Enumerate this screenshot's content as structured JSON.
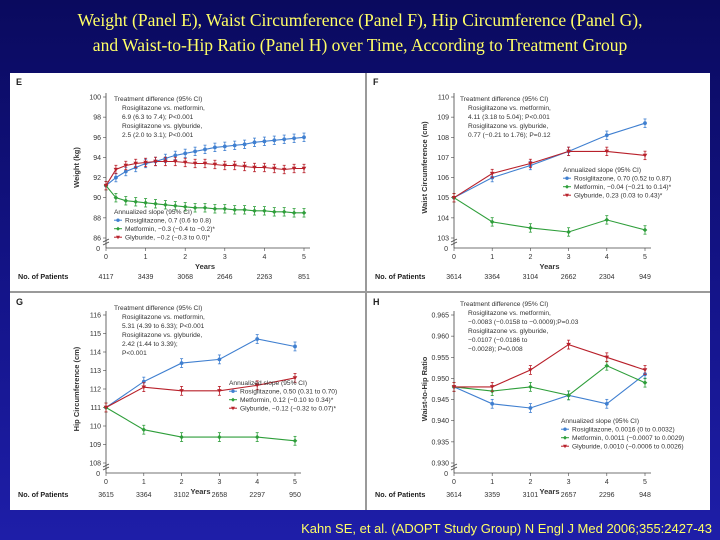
{
  "slide": {
    "title_line1": "Weight (Panel E), Waist Circumference (Panel F), Hip Circumference (Panel G),",
    "title_line2": "and Waist-to-Hip Ratio (Panel H) over Time, According to Treatment Group",
    "citation": "Kahn SE, et al. (ADOPT Study Group) N Engl J Med 2006;355:2427-43",
    "background": "#14148a",
    "title_color": "#ffff66"
  },
  "colors": {
    "rosiglitazone": "#3f7fd0",
    "metformin": "#2e9e3a",
    "glyburide": "#b8202a"
  },
  "chart_data": [
    {
      "panel": "E",
      "type": "line",
      "ylabel": "Weight (kg)",
      "xlabel": "Years",
      "ylim": [
        86,
        100
      ],
      "yticks": [
        86,
        88,
        90,
        92,
        94,
        96,
        98,
        100
      ],
      "xlim": [
        0,
        5
      ],
      "ytick_decimals": 0,
      "axis_break": true,
      "patients_label": "No. of Patients",
      "patients": [
        "4117",
        "3439",
        "3068",
        "2646",
        "2263",
        "851"
      ],
      "treat_diff": [
        "Treatment difference (95% CI)",
        "Rosiglitazone vs. metformin,",
        "6.9 (6.3 to 7.4); P<0.001",
        "Rosiglitazone vs. glyburide,",
        "2.5 (2.0 to 3.1); P<0.001"
      ],
      "slope": [
        "Annualized slope (95% CI)",
        "Rosiglitazone, 0.7 (0.6 to 0.8)",
        "Metformin, −0.3 (−0.4 to −0.2)*",
        "Glyburide, −0.2 (−0.3 to 0.0)*"
      ],
      "series": [
        {
          "name": "Rosiglitazone",
          "x": [
            0,
            0.25,
            0.5,
            0.75,
            1,
            1.25,
            1.5,
            1.75,
            2,
            2.25,
            2.5,
            2.75,
            3,
            3.25,
            3.5,
            3.75,
            4,
            4.25,
            4.5,
            4.75,
            5
          ],
          "y": [
            91.2,
            92.0,
            92.6,
            93.0,
            93.4,
            93.6,
            93.9,
            94.2,
            94.4,
            94.6,
            94.8,
            95.0,
            95.1,
            95.2,
            95.3,
            95.5,
            95.6,
            95.7,
            95.8,
            95.9,
            96.0
          ]
        },
        {
          "name": "Metformin",
          "x": [
            0,
            0.25,
            0.5,
            0.75,
            1,
            1.25,
            1.5,
            1.75,
            2,
            2.25,
            2.5,
            2.75,
            3,
            3.25,
            3.5,
            3.75,
            4,
            4.25,
            4.5,
            4.75,
            5
          ],
          "y": [
            91.2,
            90.0,
            89.7,
            89.6,
            89.5,
            89.4,
            89.3,
            89.2,
            89.1,
            89.0,
            89.0,
            88.9,
            88.9,
            88.8,
            88.8,
            88.7,
            88.7,
            88.6,
            88.6,
            88.5,
            88.5
          ]
        },
        {
          "name": "Glyburide",
          "x": [
            0,
            0.25,
            0.5,
            0.75,
            1,
            1.25,
            1.5,
            1.75,
            2,
            2.25,
            2.5,
            2.75,
            3,
            3.25,
            3.5,
            3.75,
            4,
            4.25,
            4.5,
            4.75,
            5
          ],
          "y": [
            91.2,
            92.8,
            93.2,
            93.4,
            93.5,
            93.6,
            93.6,
            93.6,
            93.5,
            93.4,
            93.4,
            93.3,
            93.2,
            93.2,
            93.1,
            93.0,
            93.0,
            92.9,
            92.8,
            92.9,
            92.9
          ]
        }
      ]
    },
    {
      "panel": "F",
      "type": "line",
      "ylabel": "Waist Circumference (cm)",
      "xlabel": "Years",
      "ylim": [
        103,
        110
      ],
      "yticks": [
        103,
        104,
        105,
        106,
        107,
        108,
        109,
        110
      ],
      "xlim": [
        0,
        5
      ],
      "ytick_decimals": 0,
      "axis_break": true,
      "patients_label": "No. of Patients",
      "patients": [
        "3614",
        "3364",
        "3104",
        "2662",
        "2304",
        "949"
      ],
      "treat_diff": [
        "Treatment difference (95% CI)",
        "Rosiglitazone vs. metformin,",
        "4.11 (3.18 to 5.04); P<0.001",
        "Rosiglitazone vs. glyburide,",
        "0.77 (−0.21 to 1.76); P=0.12"
      ],
      "slope": [
        "Annualized slope (95% CI)",
        "Rosiglitazone, 0.70 (0.52 to 0.87)",
        "Metformin, −0.04 (−0.21 to 0.14)*",
        "Glyburide, 0.23 (0.03 to 0.43)*"
      ],
      "series": [
        {
          "name": "Rosiglitazone",
          "x": [
            0,
            1,
            2,
            3,
            4,
            5
          ],
          "y": [
            105.0,
            106.0,
            106.6,
            107.3,
            108.1,
            108.7
          ]
        },
        {
          "name": "Metformin",
          "x": [
            0,
            1,
            2,
            3,
            4,
            5
          ],
          "y": [
            105.0,
            103.8,
            103.5,
            103.3,
            103.9,
            103.4
          ]
        },
        {
          "name": "Glyburide",
          "x": [
            0,
            1,
            2,
            3,
            4,
            5
          ],
          "y": [
            105.0,
            106.2,
            106.7,
            107.3,
            107.3,
            107.1
          ]
        }
      ]
    },
    {
      "panel": "G",
      "type": "line",
      "ylabel": "Hip Circumference (cm)",
      "xlabel": "Years",
      "ylim": [
        108,
        116
      ],
      "yticks": [
        108,
        109,
        110,
        111,
        112,
        113,
        114,
        115,
        116
      ],
      "xlim": [
        0,
        5
      ],
      "ytick_decimals": 0,
      "axis_break": true,
      "patients_label": "No. of Patients",
      "patients": [
        "3615",
        "3364",
        "3102",
        "2658",
        "2297",
        "950"
      ],
      "treat_diff": [
        "Treatment difference (95% CI)",
        "Rosiglitazone vs. metformin,",
        "5.31 (4.39 to 6.33); P<0.001",
        "Rosiglitazone vs. glyburide,",
        "2.42 (1.44 to 3.39);",
        "P<0.001"
      ],
      "slope": [
        "Annualized slope (95% CI)",
        "Rosiglitazone, 0.50 (0.31 to 0.70)",
        "Metformin, 0.12 (−0.10 to 0.34)*",
        "Glyburide, −0.12 (−0.32 to 0.07)*"
      ],
      "series": [
        {
          "name": "Rosiglitazone",
          "x": [
            0,
            1,
            2,
            3,
            4,
            5
          ],
          "y": [
            111.0,
            112.4,
            113.4,
            113.6,
            114.7,
            114.3
          ]
        },
        {
          "name": "Metformin",
          "x": [
            0,
            1,
            2,
            3,
            4,
            5
          ],
          "y": [
            111.0,
            109.8,
            109.4,
            109.4,
            109.4,
            109.2
          ]
        },
        {
          "name": "Glyburide",
          "x": [
            0,
            1,
            2,
            3,
            4,
            5
          ],
          "y": [
            111.0,
            112.1,
            111.9,
            111.9,
            112.2,
            112.6
          ]
        }
      ]
    },
    {
      "panel": "H",
      "type": "line",
      "ylabel": "Waist-to-Hip Ratio",
      "xlabel": "Years",
      "ylim": [
        0.93,
        0.965
      ],
      "yticks": [
        0.93,
        0.935,
        0.94,
        0.945,
        0.95,
        0.955,
        0.96,
        0.965
      ],
      "xlim": [
        0,
        5
      ],
      "ytick_decimals": 3,
      "axis_break": true,
      "patients_label": "No. of Patients",
      "patients": [
        "3614",
        "3359",
        "3101",
        "2657",
        "2296",
        "948"
      ],
      "treat_diff": [
        "Treatment difference (95% CI)",
        "Rosiglitazone vs. metformin,",
        "−0.0083 (−0.0158 to −0.0009);P=0.03",
        "Rosiglitazone vs. glyburide,",
        "−0.0107 (−0.0186 to",
        "−0.0028); P=0.008"
      ],
      "slope": [
        "Annualized slope (95% CI)",
        "Rosiglitazone, 0.0016 (0 to 0.0032)",
        "Metformin, 0.0011 (−0.0007 to 0.0029)",
        "Glyburide, 0.0010 (−0.0006 to 0.0026)"
      ],
      "series": [
        {
          "name": "Rosiglitazone",
          "x": [
            0,
            1,
            2,
            3,
            4,
            5
          ],
          "y": [
            0.948,
            0.944,
            0.943,
            0.946,
            0.944,
            0.951
          ]
        },
        {
          "name": "Metformin",
          "x": [
            0,
            1,
            2,
            3,
            4,
            5
          ],
          "y": [
            0.948,
            0.947,
            0.948,
            0.946,
            0.953,
            0.949
          ]
        },
        {
          "name": "Glyburide",
          "x": [
            0,
            1,
            2,
            3,
            4,
            5
          ],
          "y": [
            0.948,
            0.948,
            0.952,
            0.958,
            0.955,
            0.952
          ]
        }
      ]
    }
  ]
}
